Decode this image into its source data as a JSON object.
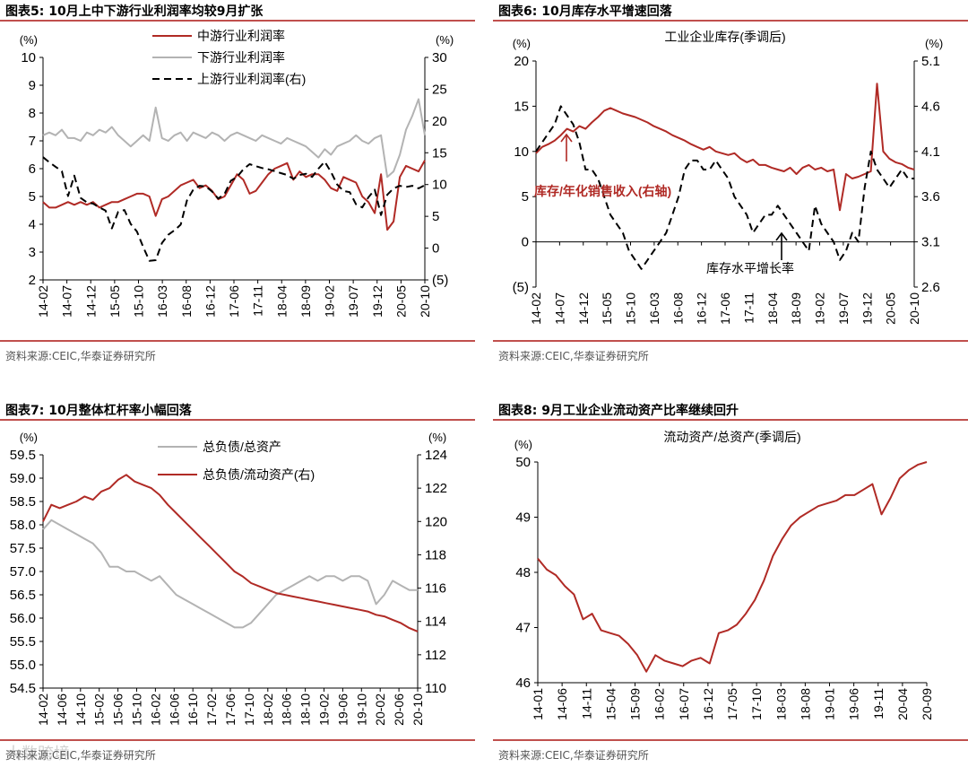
{
  "colors": {
    "red": "#b02a25",
    "gray": "#b3b3b3",
    "black": "#000000",
    "rule": "#c0504d"
  },
  "panels": [
    {
      "title": "图表5:  10月上中下游行业利润率均较9月扩张",
      "source": "资料来源:CEIC,华泰证券研究所",
      "chart_data": {
        "type": "line",
        "title": "",
        "left_axis": {
          "unit": "(%)",
          "ticks": [
            "2",
            "3",
            "4",
            "5",
            "6",
            "7",
            "8",
            "9",
            "10"
          ],
          "min": 2,
          "max": 10
        },
        "right_axis": {
          "unit": "(%)",
          "ticks": [
            "(5)",
            "0",
            "5",
            "10",
            "15",
            "20",
            "25",
            "30"
          ],
          "min": -5,
          "max": 30
        },
        "x_ticks": [
          "14-02",
          "14-07",
          "14-12",
          "15-05",
          "15-10",
          "16-03",
          "16-08",
          "16-12",
          "17-06",
          "17-11",
          "18-04",
          "18-09",
          "19-02",
          "19-07",
          "19-12",
          "20-05",
          "20-10"
        ],
        "legend": [
          "中游行业利润率",
          "下游行业利润率",
          "上游行业利润率(右)"
        ],
        "series": [
          {
            "name": "中游行业利润率",
            "axis": "left",
            "color": "#b02a25",
            "dash": false,
            "values": [
              4.8,
              4.6,
              4.6,
              4.7,
              4.8,
              4.7,
              4.8,
              4.7,
              4.8,
              4.6,
              4.7,
              4.8,
              4.8,
              4.9,
              5.0,
              5.1,
              5.1,
              5.0,
              4.3,
              4.9,
              5.0,
              5.2,
              5.4,
              5.5,
              5.6,
              5.3,
              5.4,
              5.2,
              4.9,
              5.0,
              5.4,
              5.8,
              5.6,
              5.1,
              5.2,
              5.5,
              5.8,
              6.0,
              6.1,
              6.2,
              5.6,
              5.9,
              5.7,
              5.8,
              5.8,
              5.6,
              5.3,
              5.2,
              5.7,
              5.6,
              5.5,
              5.0,
              4.8,
              4.4,
              5.8,
              3.8,
              4.1,
              5.7,
              6.1,
              6.0,
              5.9,
              6.3
            ]
          },
          {
            "name": "下游行业利润率",
            "axis": "left",
            "color": "#b3b3b3",
            "dash": false,
            "values": [
              7.2,
              7.3,
              7.2,
              7.4,
              7.1,
              7.1,
              7.0,
              7.3,
              7.2,
              7.4,
              7.3,
              7.5,
              7.2,
              7.0,
              6.8,
              7.0,
              7.2,
              7.0,
              8.2,
              7.1,
              7.0,
              7.2,
              7.3,
              7.0,
              7.3,
              7.2,
              7.1,
              7.3,
              7.2,
              7.0,
              7.2,
              7.3,
              7.2,
              7.1,
              7.0,
              7.2,
              7.1,
              7.0,
              6.9,
              7.1,
              7.0,
              6.9,
              6.8,
              6.6,
              6.4,
              6.7,
              6.5,
              6.8,
              6.9,
              7.0,
              7.2,
              7.0,
              6.9,
              7.1,
              7.2,
              5.7,
              5.9,
              6.5,
              7.4,
              7.9,
              8.5,
              7.2
            ]
          },
          {
            "name": "上游行业利润率(右)",
            "axis": "right",
            "color": "#000000",
            "dash": true,
            "values": [
              14.3,
              13.5,
              12.8,
              12.1,
              8.2,
              11.4,
              7.9,
              7.2,
              7.0,
              6.4,
              5.9,
              3.1,
              5.7,
              6.0,
              3.8,
              2.6,
              0.2,
              -2.0,
              -1.9,
              0.8,
              2.1,
              2.8,
              3.7,
              7.5,
              9.2,
              9.8,
              9.7,
              8.9,
              7.8,
              8.5,
              10.6,
              11.2,
              12.4,
              13.2,
              12.9,
              12.6,
              12.4,
              12.1,
              11.8,
              11.5,
              10.9,
              11.5,
              11.7,
              11.2,
              12.5,
              13.6,
              12.0,
              10.0,
              9.0,
              8.8,
              6.9,
              6.4,
              8.0,
              9.2,
              5.2,
              8.4,
              9.4,
              9.8,
              9.6,
              9.8,
              9.4,
              9.9
            ]
          }
        ],
        "annotations": []
      }
    },
    {
      "title": "图表6:  10月库存水平增速回落",
      "source": "资料来源:CEIC,华泰证券研究所",
      "chart_data": {
        "type": "line",
        "title": "工业企业库存(季调后)",
        "left_axis": {
          "unit": "(%)",
          "ticks": [
            "(5)",
            "0",
            "5",
            "10",
            "15",
            "20"
          ],
          "min": -5,
          "max": 20
        },
        "right_axis": {
          "unit": "(%)",
          "ticks": [
            "2.6",
            "3.1",
            "3.6",
            "4.1",
            "4.6",
            "5.1"
          ],
          "min": 2.6,
          "max": 5.1
        },
        "x_ticks": [
          "14-02",
          "14-07",
          "14-12",
          "15-05",
          "15-10",
          "16-03",
          "16-08",
          "16-12",
          "17-06",
          "17-11",
          "18-04",
          "18-09",
          "19-02",
          "19-07",
          "19-12",
          "20-05",
          "20-10"
        ],
        "legend": [],
        "series": [
          {
            "name": "库存/年化销售收入(右轴)",
            "axis": "right",
            "color": "#b02a25",
            "dash": false,
            "values": [
              4.08,
              4.15,
              4.18,
              4.22,
              4.28,
              4.35,
              4.32,
              4.38,
              4.35,
              4.42,
              4.48,
              4.55,
              4.58,
              4.55,
              4.52,
              4.5,
              4.48,
              4.45,
              4.42,
              4.38,
              4.35,
              4.32,
              4.28,
              4.25,
              4.22,
              4.18,
              4.15,
              4.12,
              4.15,
              4.1,
              4.08,
              4.06,
              4.08,
              4.02,
              3.98,
              4.01,
              3.95,
              3.95,
              3.92,
              3.9,
              3.88,
              3.92,
              3.85,
              3.92,
              3.95,
              3.9,
              3.92,
              3.88,
              3.9,
              3.45,
              3.85,
              3.8,
              3.82,
              3.85,
              3.88,
              4.85,
              4.1,
              4.02,
              3.98,
              3.96,
              3.92,
              3.9
            ]
          },
          {
            "name": "库存水平增长率",
            "axis": "left",
            "color": "#000000",
            "dash": true,
            "values": [
              10,
              11,
              12,
              13,
              15,
              14,
              13,
              11,
              8,
              8,
              7,
              5,
              3,
              2,
              1,
              -1,
              -2,
              -3,
              -2,
              -1,
              0,
              1,
              3,
              5,
              8,
              9,
              9,
              8,
              8,
              9,
              8,
              7,
              5,
              4,
              3,
              1,
              2,
              3,
              3,
              4,
              3,
              2,
              1,
              0,
              -1,
              4,
              2,
              1,
              0,
              -2,
              -1,
              1,
              0,
              6,
              10,
              8,
              7,
              6,
              7,
              8,
              7,
              7
            ]
          }
        ],
        "annotations": [
          "库存/年化销售收入(右轴)",
          "库存水平增长率"
        ]
      }
    },
    {
      "title": "图表7:  10月整体杠杆率小幅回落",
      "source": "资料来源:CEIC,华泰证券研究所",
      "chart_data": {
        "type": "line",
        "title": "",
        "left_axis": {
          "unit": "(%)",
          "ticks": [
            "54.5",
            "55.0",
            "55.5",
            "56.0",
            "56.5",
            "57.0",
            "57.5",
            "58.0",
            "58.5",
            "59.0",
            "59.5"
          ],
          "min": 54.5,
          "max": 59.5
        },
        "right_axis": {
          "unit": "(%)",
          "ticks": [
            "110",
            "112",
            "114",
            "116",
            "118",
            "120",
            "122",
            "124"
          ],
          "min": 110,
          "max": 124
        },
        "x_ticks": [
          "14-02",
          "14-06",
          "14-10",
          "15-02",
          "15-06",
          "15-10",
          "16-02",
          "16-06",
          "16-10",
          "17-02",
          "17-06",
          "17-10",
          "18-02",
          "18-06",
          "18-10",
          "19-02",
          "19-06",
          "19-10",
          "20-02",
          "20-06",
          "20-10"
        ],
        "legend": [
          "总负债/总资产",
          "总负债/流动资产(右)"
        ],
        "series": [
          {
            "name": "总负债/总资产",
            "axis": "left",
            "color": "#b3b3b3",
            "dash": false,
            "values": [
              57.9,
              58.1,
              58.0,
              57.9,
              57.8,
              57.7,
              57.6,
              57.4,
              57.1,
              57.1,
              57.0,
              57.0,
              56.9,
              56.8,
              56.9,
              56.7,
              56.5,
              56.4,
              56.3,
              56.2,
              56.1,
              56.0,
              55.9,
              55.8,
              55.8,
              55.9,
              56.1,
              56.3,
              56.5,
              56.6,
              56.7,
              56.8,
              56.9,
              56.8,
              56.9,
              56.9,
              56.8,
              56.9,
              56.9,
              56.8,
              56.3,
              56.5,
              56.8,
              56.7,
              56.6,
              56.6
            ]
          },
          {
            "name": "总负债/流动资产(右)",
            "axis": "right",
            "color": "#b02a25",
            "dash": false,
            "values": [
              120,
              121,
              120.8,
              121,
              121.2,
              121.5,
              121.3,
              121.8,
              122,
              122.5,
              122.8,
              122.4,
              122.2,
              122,
              121.6,
              121,
              120.5,
              120,
              119.5,
              119,
              118.5,
              118,
              117.5,
              117,
              116.7,
              116.3,
              116.1,
              115.9,
              115.7,
              115.6,
              115.5,
              115.4,
              115.3,
              115.2,
              115.1,
              115,
              114.9,
              114.8,
              114.7,
              114.6,
              114.4,
              114.3,
              114.1,
              113.9,
              113.6,
              113.4
            ]
          }
        ],
        "annotations": []
      }
    },
    {
      "title": "图表8:  9月工业企业流动资产比率继续回升",
      "source": "资料来源:CEIC,华泰证券研究所",
      "chart_data": {
        "type": "line",
        "title": "流动资产/总资产(季调后)",
        "left_axis": {
          "unit": "(%)",
          "ticks": [
            "46",
            "47",
            "48",
            "49",
            "50"
          ],
          "min": 46,
          "max": 50
        },
        "right_axis": null,
        "x_ticks": [
          "14-01",
          "14-06",
          "14-11",
          "15-04",
          "15-09",
          "16-02",
          "16-07",
          "16-12",
          "17-05",
          "17-10",
          "18-03",
          "18-08",
          "19-01",
          "19-06",
          "19-11",
          "20-04",
          "20-09"
        ],
        "legend": [],
        "series": [
          {
            "name": "流动资产/总资产(季调后)",
            "axis": "left",
            "color": "#b02a25",
            "dash": false,
            "values": [
              48.25,
              48.05,
              47.95,
              47.75,
              47.6,
              47.15,
              47.25,
              46.95,
              46.9,
              46.85,
              46.7,
              46.5,
              46.2,
              46.5,
              46.4,
              46.35,
              46.3,
              46.4,
              46.45,
              46.35,
              46.9,
              46.95,
              47.05,
              47.25,
              47.5,
              47.85,
              48.3,
              48.6,
              48.85,
              49.0,
              49.1,
              49.2,
              49.25,
              49.3,
              49.4,
              49.4,
              49.5,
              49.6,
              49.05,
              49.35,
              49.7,
              49.85,
              49.95,
              50.0
            ]
          }
        ],
        "annotations": []
      }
    }
  ],
  "watermark": "大数跨境"
}
